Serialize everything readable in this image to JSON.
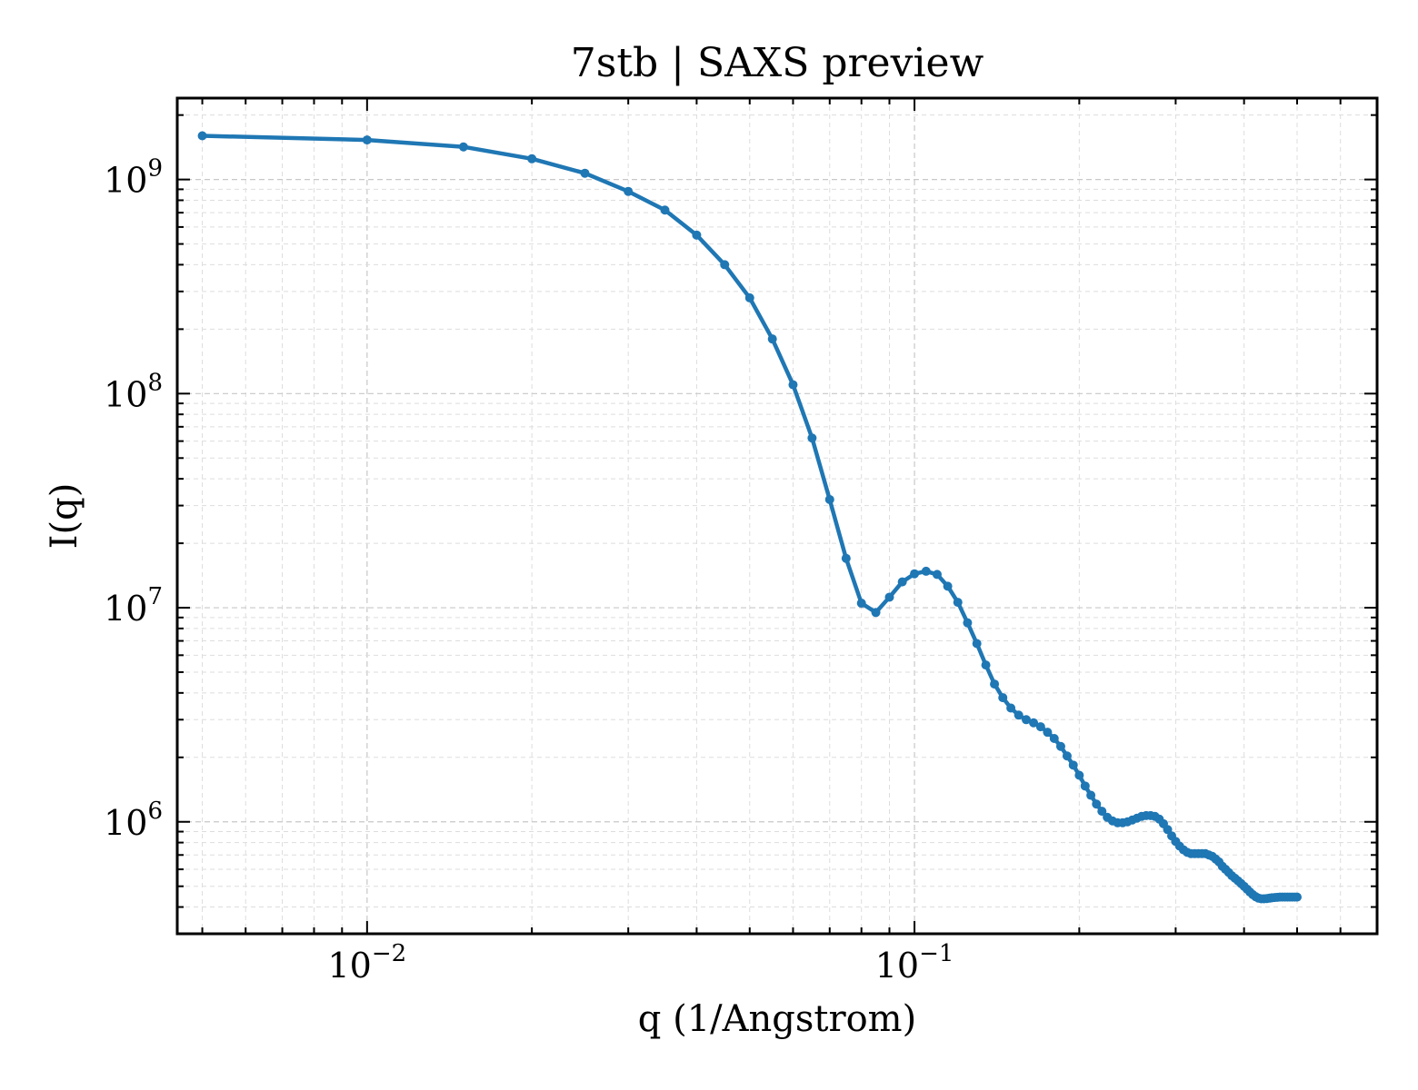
{
  "chart_data": {
    "type": "line",
    "title": "7stb | SAXS preview",
    "xlabel": "q (1/Angstrom)",
    "ylabel": "I(q)",
    "xscale": "log",
    "yscale": "log",
    "xlim": [
      0.0045,
      0.7
    ],
    "ylim": [
      300000,
      2400000000
    ],
    "grid": true,
    "color": "#1f77b4",
    "x_ticks": [
      {
        "base": "10",
        "exp": "−2",
        "value": 0.01
      },
      {
        "base": "10",
        "exp": "−1",
        "value": 0.1
      }
    ],
    "y_ticks": [
      {
        "base": "10",
        "exp": "6",
        "value": 1000000
      },
      {
        "base": "10",
        "exp": "7",
        "value": 10000000
      },
      {
        "base": "10",
        "exp": "8",
        "value": 100000000
      },
      {
        "base": "10",
        "exp": "9",
        "value": 1000000000
      }
    ],
    "series": [
      {
        "x": [
          0.005,
          0.01,
          0.015,
          0.02,
          0.025,
          0.03,
          0.035,
          0.04,
          0.045,
          0.05,
          0.055,
          0.06,
          0.065,
          0.07,
          0.075,
          0.08,
          0.085,
          0.09,
          0.095,
          0.1,
          0.105,
          0.11,
          0.115,
          0.12,
          0.125,
          0.13,
          0.135,
          0.14,
          0.145,
          0.15,
          0.155,
          0.16,
          0.165,
          0.17,
          0.175,
          0.18,
          0.185,
          0.19,
          0.195,
          0.2,
          0.205,
          0.21,
          0.215,
          0.22,
          0.225,
          0.23,
          0.235,
          0.24,
          0.245,
          0.25,
          0.255,
          0.26,
          0.265,
          0.27,
          0.275,
          0.28,
          0.285,
          0.29,
          0.295,
          0.3,
          0.305,
          0.31,
          0.315,
          0.32,
          0.325,
          0.33,
          0.335,
          0.34,
          0.345,
          0.35,
          0.355,
          0.36,
          0.365,
          0.37,
          0.375,
          0.38,
          0.385,
          0.39,
          0.395,
          0.4,
          0.405,
          0.41,
          0.415,
          0.42,
          0.425,
          0.43,
          0.435,
          0.44,
          0.445,
          0.45,
          0.455,
          0.46,
          0.465,
          0.47,
          0.475,
          0.48,
          0.485,
          0.49,
          0.495,
          0.5
        ],
        "y": [
          1600000000,
          1530000000,
          1420000000,
          1250000000,
          1070000000,
          880000000,
          720000000,
          550000000,
          400000000,
          280000000,
          180000000,
          110000000,
          62000000,
          32000000,
          17000000,
          10500000,
          9500000,
          11200000,
          13200000,
          14400000,
          14800000,
          14300000,
          12600000,
          10600000,
          8500000,
          6800000,
          5400000,
          4400000,
          3800000,
          3400000,
          3150000,
          3000000,
          2900000,
          2780000,
          2620000,
          2450000,
          2250000,
          2030000,
          1840000,
          1650000,
          1470000,
          1330000,
          1210000,
          1120000,
          1050000,
          1010000,
          990000,
          990000,
          1000000,
          1020000,
          1040000,
          1060000,
          1070000,
          1070000,
          1060000,
          1030000,
          980000,
          920000,
          860000,
          810000,
          770000,
          740000,
          720000,
          710000,
          710000,
          710000,
          710000,
          710000,
          700000,
          690000,
          670000,
          650000,
          620000,
          600000,
          580000,
          560000,
          545000,
          530000,
          515000,
          500000,
          485000,
          470000,
          457000,
          447000,
          440000,
          437000,
          437000,
          438000,
          440000,
          442000,
          443000,
          444000,
          445000,
          445000,
          445000,
          445000,
          445000,
          445000,
          445000,
          445000
        ]
      }
    ]
  }
}
